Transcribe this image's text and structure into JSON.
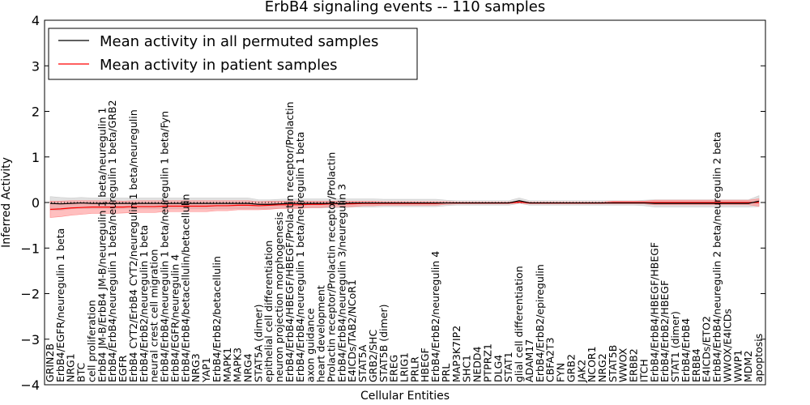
{
  "chart_data": {
    "type": "line",
    "title": "ErbB4 signaling events -- 110 samples",
    "xlabel": "Cellular Entities",
    "ylabel": "Inferred Activity",
    "ylim": [
      -4,
      4
    ],
    "yticks": [
      -4,
      -3,
      -2,
      -1,
      0,
      1,
      2,
      3,
      4
    ],
    "legend_position": "top-left",
    "categories": [
      "GRIN2B",
      "ErbB4/EGFR/neuregulin 1 beta",
      "NRG1",
      "BTC",
      "cell proliferation",
      "ErbB4 JM-B/ErbB4 JM-B/neuregulin 1 beta/neuregulin 1",
      "ErbB4/ErbB4/neuregulin 1 beta/neuregulin 1 beta/GRB2",
      "EGFR",
      "ErbB4 CYT2/ErbB4 CYT2/neuregulin 1 beta/neuregulin",
      "ErbB4/ErbB2/neuregulin 1 beta",
      "neural crest cell migration",
      "ErbB4/ErbB4/neuregulin 1 beta/neuregulin 1 beta/Fyn",
      "ErbB4/EGFR/neuregulin 4",
      "ErbB4/ErbB4/betacellulin/betacellulin",
      "NRG3",
      "YAP1",
      "ErbB4/ErbB2/betacellulin",
      "MAPK1",
      "MAPK3",
      "NRG4",
      "STAT5A (dimer)",
      "epithelial cell differentiation",
      "neuron projection morphogenesis",
      "ErbB4/ErbB4/HBEGF/HBEGF/Prolactin receptor/Prolactin",
      "ErbB4/ErbB4/neuregulin 1 beta/neuregulin 1 beta",
      "axon guidance",
      "heart development",
      "Prolactin receptor/Prolactin receptor/Prolactin",
      "ErbB4/ErbB4/neuregulin 3/neuregulin 3",
      "E4ICDs/TAB2/NCoR1",
      "STAT5A",
      "GRB2/SHC",
      "STAT5B (dimer)",
      "EREG",
      "LRIG1",
      "PRLR",
      "HBEGF",
      "ErbB4/ErbB2/neuregulin 4",
      "PRL",
      "MAP3K7IP2",
      "SHC1",
      "NEDD4",
      "PTPRZ1",
      "DLG4",
      "STAT1",
      "glial cell differentiation",
      "ADAM17",
      "ErbB4/ErbB2/epiregulin",
      "CBFA2T3",
      "FYN",
      "GRB2",
      "JAK2",
      "NCOR1",
      "NRG2",
      "STAT5B",
      "WWOX",
      "ERBB2",
      "ITCH",
      "ErbB4/ErbB4/HBEGF/HBEGF",
      "ErbB4/ErbB2/HBEGF",
      "STAT1 (dimer)",
      "ErbB4/ErbB4",
      "ERBB4",
      "E4ICDs/ETO2",
      "ErbB4/ErbB4/neuregulin 2 beta/neuregulin 2 beta",
      "WWOX/E4ICDs",
      "WWP1",
      "MDM2",
      "apoptosis"
    ],
    "series": [
      {
        "name": "Mean activity in all permuted samples",
        "color": "#000000",
        "band_color": "#c8c8c8",
        "values": [
          -0.02,
          -0.03,
          -0.02,
          -0.01,
          -0.02,
          -0.02,
          -0.02,
          -0.02,
          -0.02,
          -0.02,
          -0.02,
          -0.02,
          -0.02,
          -0.02,
          -0.02,
          -0.02,
          -0.02,
          -0.02,
          -0.02,
          -0.02,
          -0.04,
          -0.04,
          -0.03,
          -0.02,
          -0.02,
          -0.02,
          -0.02,
          -0.02,
          -0.02,
          -0.01,
          -0.01,
          -0.01,
          -0.01,
          -0.01,
          -0.01,
          -0.01,
          -0.01,
          -0.01,
          -0.01,
          -0.01,
          -0.01,
          -0.01,
          -0.01,
          -0.01,
          -0.01,
          0.04,
          -0.01,
          -0.01,
          -0.01,
          -0.01,
          -0.01,
          -0.01,
          -0.01,
          -0.01,
          -0.01,
          -0.01,
          -0.01,
          -0.01,
          -0.02,
          -0.02,
          -0.02,
          -0.02,
          -0.02,
          -0.02,
          -0.02,
          -0.02,
          -0.02,
          -0.02,
          0.03
        ],
        "band": [
          0.15,
          0.14,
          0.12,
          0.12,
          0.12,
          0.12,
          0.12,
          0.12,
          0.12,
          0.12,
          0.12,
          0.12,
          0.12,
          0.12,
          0.12,
          0.12,
          0.12,
          0.12,
          0.12,
          0.12,
          0.1,
          0.1,
          0.1,
          0.1,
          0.1,
          0.1,
          0.1,
          0.1,
          0.1,
          0.09,
          0.09,
          0.09,
          0.08,
          0.08,
          0.08,
          0.08,
          0.08,
          0.08,
          0.06,
          0.05,
          0.05,
          0.05,
          0.05,
          0.05,
          0.05,
          0.06,
          0.05,
          0.05,
          0.05,
          0.05,
          0.05,
          0.05,
          0.05,
          0.05,
          0.05,
          0.05,
          0.05,
          0.06,
          0.08,
          0.08,
          0.08,
          0.08,
          0.08,
          0.08,
          0.08,
          0.08,
          0.08,
          0.08,
          0.12
        ]
      },
      {
        "name": "Mean activity in patient samples",
        "color": "#ff0000",
        "band_color": "#ff8080",
        "values": [
          -0.15,
          -0.14,
          -0.12,
          -0.11,
          -0.1,
          -0.1,
          -0.1,
          -0.1,
          -0.09,
          -0.09,
          -0.09,
          -0.08,
          -0.08,
          -0.08,
          -0.08,
          -0.08,
          -0.07,
          -0.07,
          -0.06,
          -0.06,
          -0.07,
          -0.06,
          -0.05,
          -0.05,
          -0.05,
          -0.04,
          -0.04,
          -0.03,
          -0.03,
          -0.03,
          -0.02,
          -0.02,
          -0.02,
          -0.02,
          -0.02,
          -0.02,
          -0.02,
          -0.02,
          -0.01,
          -0.01,
          -0.01,
          -0.01,
          -0.01,
          -0.01,
          -0.01,
          0.01,
          -0.01,
          -0.01,
          -0.01,
          -0.01,
          -0.01,
          -0.01,
          -0.01,
          -0.01,
          0.0,
          0.0,
          0.0,
          0.0,
          0.0,
          0.0,
          0.0,
          0.0,
          0.0,
          0.0,
          0.0,
          0.0,
          0.0,
          0.0,
          0.0
        ],
        "band": [
          0.18,
          0.17,
          0.16,
          0.15,
          0.14,
          0.14,
          0.14,
          0.13,
          0.13,
          0.13,
          0.13,
          0.12,
          0.12,
          0.12,
          0.12,
          0.12,
          0.11,
          0.11,
          0.1,
          0.1,
          0.09,
          0.09,
          0.08,
          0.08,
          0.08,
          0.07,
          0.07,
          0.06,
          0.06,
          0.06,
          0.05,
          0.05,
          0.04,
          0.04,
          0.04,
          0.04,
          0.04,
          0.04,
          0.03,
          0.02,
          0.02,
          0.02,
          0.02,
          0.02,
          0.02,
          0.02,
          0.02,
          0.02,
          0.02,
          0.02,
          0.02,
          0.02,
          0.02,
          0.02,
          0.03,
          0.03,
          0.03,
          0.03,
          0.05,
          0.05,
          0.05,
          0.05,
          0.05,
          0.05,
          0.05,
          0.05,
          0.05,
          0.05,
          0.08
        ]
      }
    ]
  }
}
